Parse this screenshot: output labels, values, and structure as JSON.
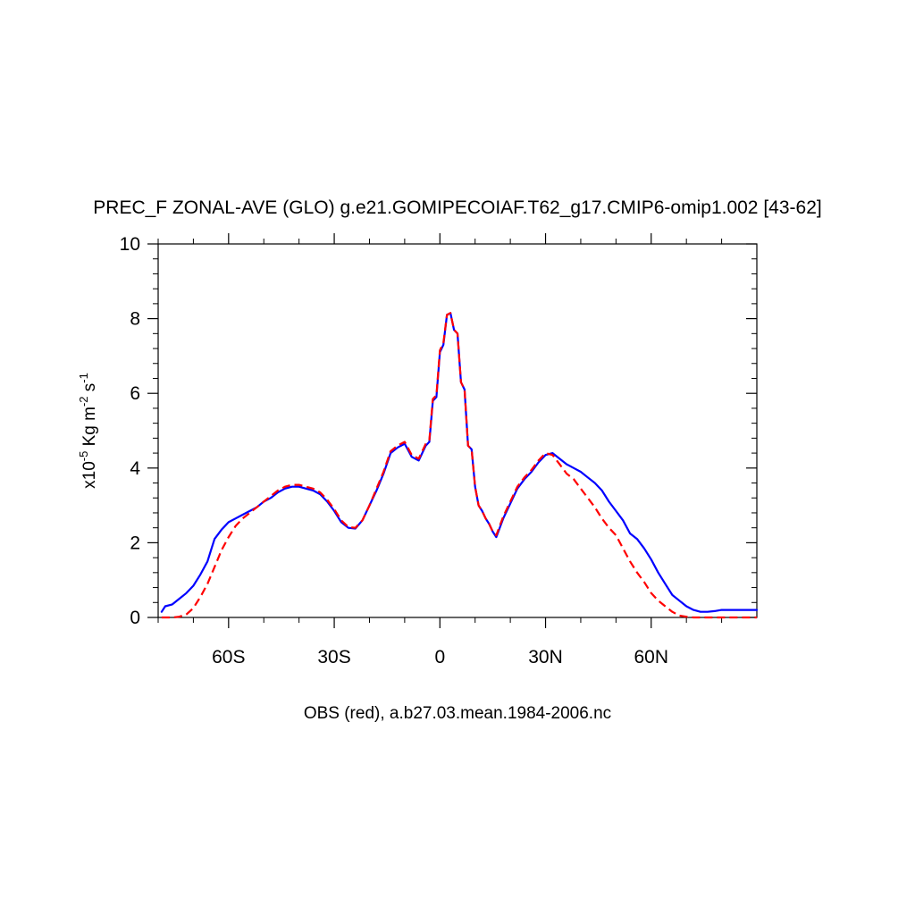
{
  "chart_data": {
    "type": "line",
    "title": "PREC_F ZONAL-AVE (GLO) g.e21.GOMIPECOIAF.T62_g17.CMIP6-omip1.002 [43-62]",
    "ylabel": {
      "prefix": "x10",
      "exp": "-5",
      "unit1": " Kg m",
      "exp2": "-2",
      "unit2": " s",
      "exp3": "-1"
    },
    "xlabel": "OBS (red), a.b27.03.mean.1984-2006.nc",
    "xlim": [
      -80,
      90
    ],
    "ylim": [
      0,
      10
    ],
    "xticks": [
      {
        "value": -60,
        "label": "60S"
      },
      {
        "value": -30,
        "label": "30S"
      },
      {
        "value": 0,
        "label": "0"
      },
      {
        "value": 30,
        "label": "30N"
      },
      {
        "value": 60,
        "label": "60N"
      }
    ],
    "yticks": [
      {
        "value": 0,
        "label": "0"
      },
      {
        "value": 2,
        "label": "2"
      },
      {
        "value": 4,
        "label": "4"
      },
      {
        "value": 6,
        "label": "6"
      },
      {
        "value": 8,
        "label": "8"
      },
      {
        "value": 10,
        "label": "10"
      }
    ],
    "series": [
      {
        "color": "#0000ff",
        "dash": "solid",
        "x": [
          -79,
          -78,
          -76,
          -74,
          -72,
          -70,
          -68,
          -66,
          -65,
          -64,
          -62,
          -60,
          -58,
          -56,
          -54,
          -52,
          -50,
          -48,
          -46,
          -44,
          -42,
          -40,
          -38,
          -36,
          -34,
          -32,
          -30,
          -28,
          -26,
          -24,
          -22,
          -20,
          -18,
          -16,
          -14,
          -12,
          -10,
          -8,
          -6,
          -4,
          -3,
          -2,
          -1,
          0,
          1,
          2,
          3,
          4,
          5,
          6,
          7,
          8,
          9,
          10,
          11,
          12,
          13,
          14,
          15,
          16,
          18,
          20,
          22,
          24,
          26,
          28,
          30,
          32,
          34,
          36,
          38,
          40,
          42,
          44,
          46,
          48,
          50,
          52,
          54,
          56,
          58,
          60,
          62,
          64,
          66,
          68,
          70,
          72,
          74,
          76,
          78,
          80,
          82,
          84,
          86,
          88,
          90
        ],
        "y": [
          0.15,
          0.3,
          0.35,
          0.5,
          0.65,
          0.85,
          1.15,
          1.5,
          1.8,
          2.1,
          2.35,
          2.55,
          2.65,
          2.75,
          2.85,
          2.95,
          3.1,
          3.2,
          3.35,
          3.45,
          3.5,
          3.5,
          3.45,
          3.4,
          3.3,
          3.1,
          2.85,
          2.55,
          2.4,
          2.38,
          2.6,
          3.0,
          3.4,
          3.85,
          4.4,
          4.55,
          4.65,
          4.3,
          4.2,
          4.6,
          4.7,
          5.8,
          5.9,
          7.1,
          7.3,
          8.1,
          8.15,
          7.7,
          7.6,
          6.3,
          6.1,
          4.6,
          4.5,
          3.5,
          3.0,
          2.85,
          2.65,
          2.5,
          2.3,
          2.15,
          2.65,
          3.05,
          3.45,
          3.7,
          3.9,
          4.15,
          4.35,
          4.4,
          4.25,
          4.1,
          4.0,
          3.9,
          3.75,
          3.6,
          3.4,
          3.1,
          2.85,
          2.6,
          2.25,
          2.1,
          1.85,
          1.55,
          1.2,
          0.9,
          0.6,
          0.45,
          0.3,
          0.2,
          0.15,
          0.15,
          0.17,
          0.2,
          0.2,
          0.2,
          0.2,
          0.2,
          0.2
        ]
      },
      {
        "color": "#ff0000",
        "dash": "dashed",
        "x": [
          -79,
          -78,
          -76,
          -74,
          -72,
          -70,
          -68,
          -66,
          -64,
          -62,
          -60,
          -58,
          -56,
          -54,
          -52,
          -50,
          -48,
          -46,
          -44,
          -42,
          -40,
          -38,
          -36,
          -34,
          -32,
          -30,
          -28,
          -26,
          -24,
          -22,
          -20,
          -18,
          -16,
          -14,
          -12,
          -10,
          -8,
          -6,
          -4,
          -3,
          -2,
          -1,
          0,
          1,
          2,
          3,
          4,
          5,
          6,
          7,
          8,
          9,
          10,
          11,
          12,
          13,
          14,
          15,
          16,
          18,
          20,
          22,
          24,
          26,
          28,
          30,
          32,
          34,
          36,
          38,
          40,
          42,
          44,
          46,
          48,
          50,
          52,
          54,
          56,
          58,
          60,
          62,
          64,
          66,
          68,
          70,
          72,
          74,
          76,
          78,
          80,
          82,
          84,
          86,
          88,
          90
        ],
        "y": [
          0.0,
          0.0,
          0.0,
          0.02,
          0.08,
          0.25,
          0.55,
          0.9,
          1.35,
          1.8,
          2.15,
          2.45,
          2.65,
          2.8,
          2.95,
          3.1,
          3.25,
          3.4,
          3.5,
          3.55,
          3.55,
          3.5,
          3.45,
          3.35,
          3.15,
          2.9,
          2.6,
          2.42,
          2.4,
          2.6,
          3.0,
          3.45,
          3.9,
          4.45,
          4.6,
          4.7,
          4.35,
          4.25,
          4.65,
          4.75,
          5.85,
          5.95,
          7.15,
          7.35,
          8.1,
          8.15,
          7.7,
          7.6,
          6.3,
          6.1,
          4.6,
          4.5,
          3.5,
          3.0,
          2.85,
          2.65,
          2.5,
          2.3,
          2.2,
          2.7,
          3.1,
          3.5,
          3.75,
          3.95,
          4.2,
          4.4,
          4.35,
          4.1,
          3.85,
          3.7,
          3.45,
          3.2,
          2.95,
          2.65,
          2.4,
          2.2,
          1.85,
          1.5,
          1.2,
          0.95,
          0.65,
          0.45,
          0.3,
          0.15,
          0.05,
          0.02,
          0.0,
          0.0,
          0.0,
          0.0,
          0.0,
          0.0,
          0.0,
          0.0,
          0.0,
          0.0
        ]
      }
    ]
  }
}
